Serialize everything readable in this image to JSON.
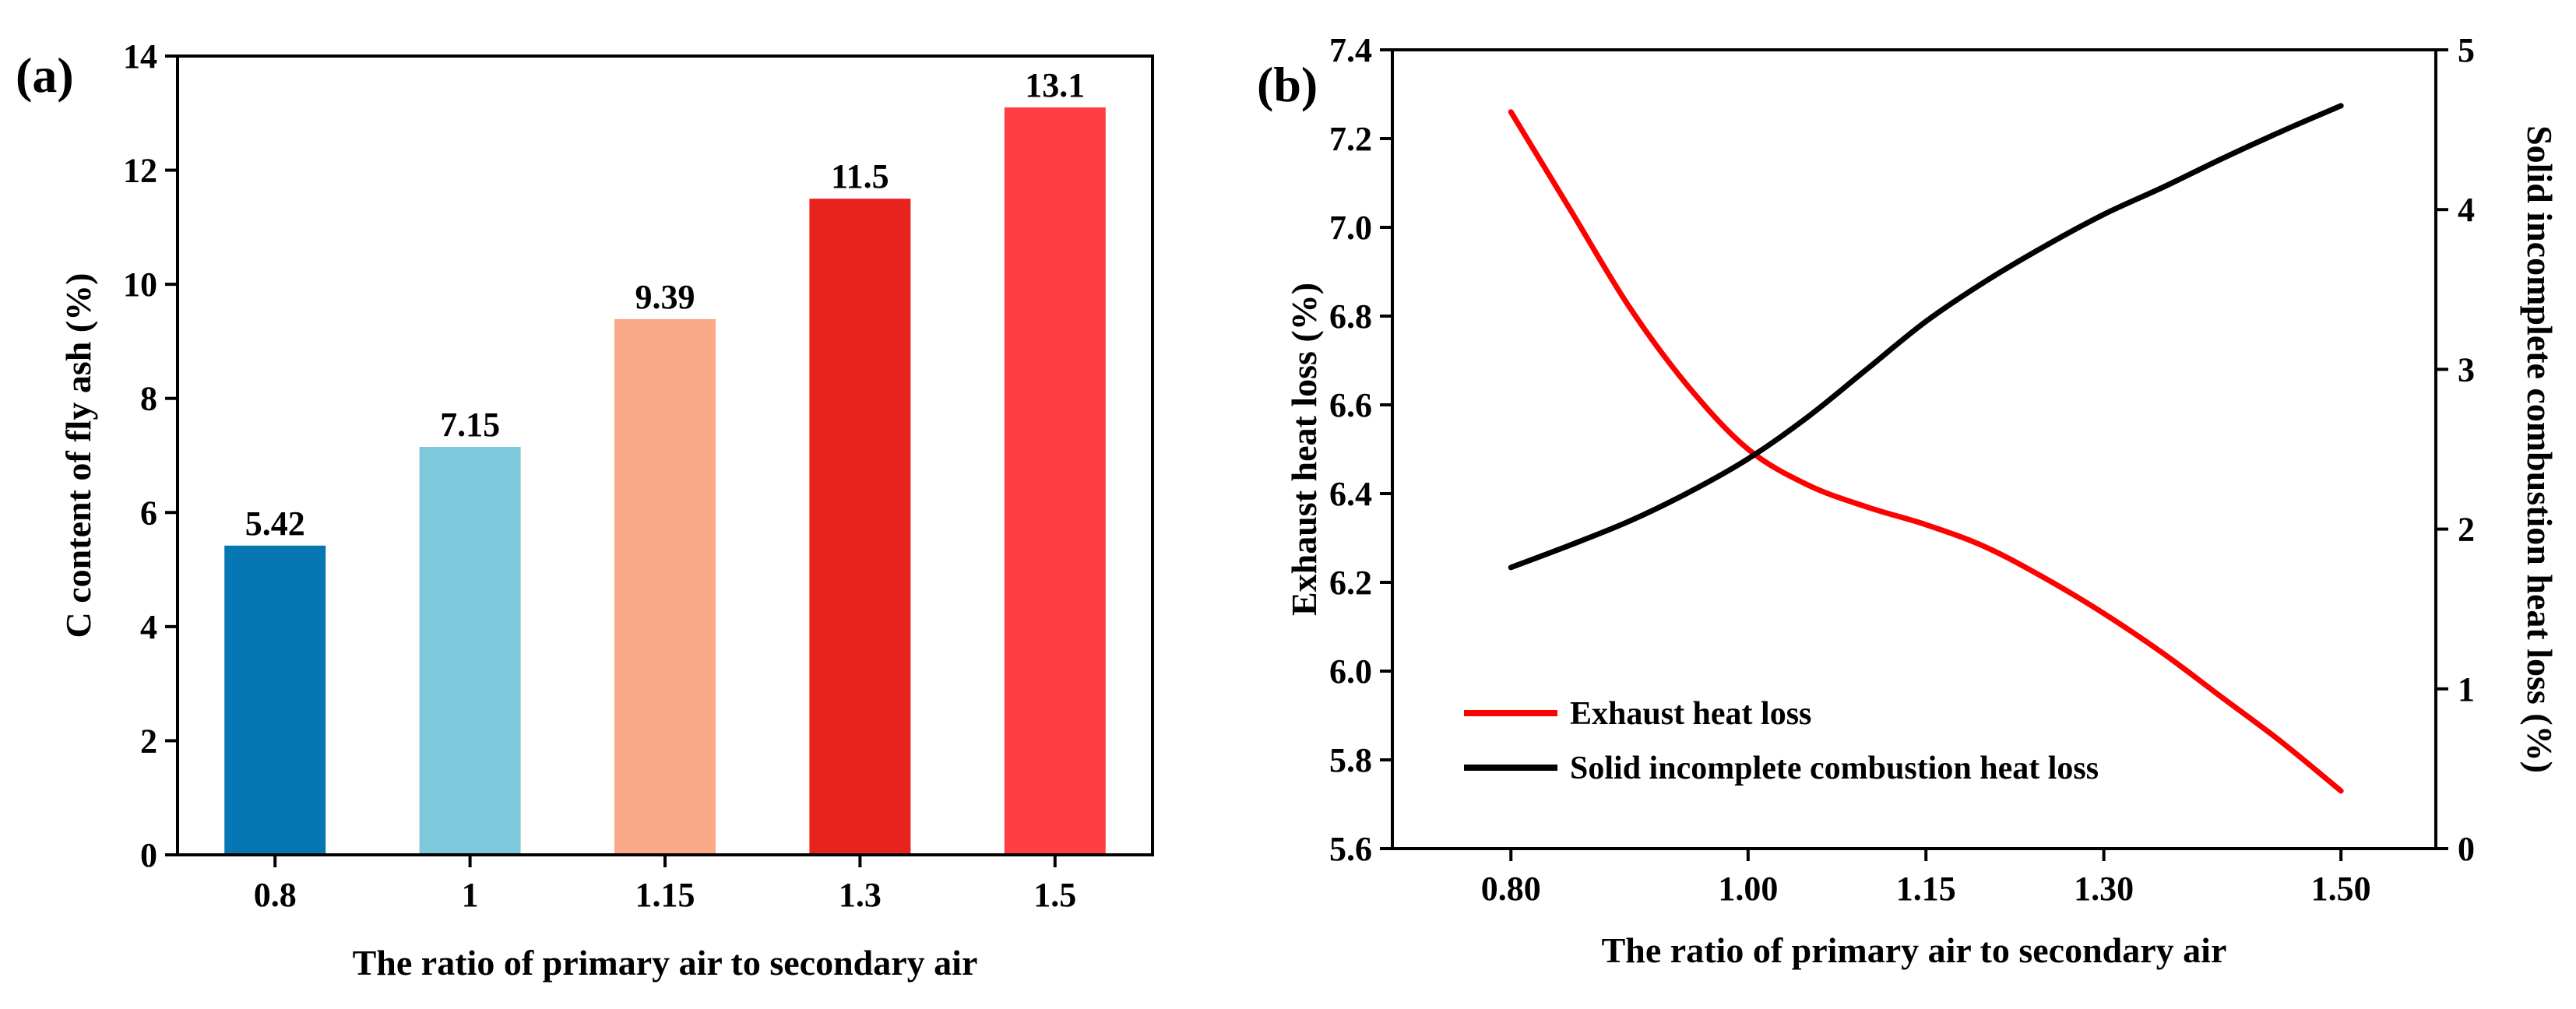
{
  "chart_data": [
    {
      "panel": "(a)",
      "type": "bar",
      "xlabel": "The ratio of primary air to secondary air",
      "ylabel": "C content of fly ash (%)",
      "ylim": [
        0,
        14
      ],
      "yticks": [
        "0",
        "2",
        "4",
        "6",
        "8",
        "10",
        "12",
        "14"
      ],
      "categories": [
        "0.8",
        "1",
        "1.15",
        "1.3",
        "1.5"
      ],
      "values": [
        5.42,
        7.15,
        9.39,
        11.5,
        13.1
      ],
      "data_labels": [
        "5.42",
        "7.15",
        "9.39",
        "11.5",
        "13.1"
      ],
      "colors": [
        "#0677b3",
        "#7ec8dc",
        "#fca98a",
        "#e8221e",
        "#fd3f44"
      ]
    },
    {
      "panel": "(b)",
      "type": "line",
      "xlabel": "The ratio of primary air to secondary air",
      "ylabel_left": "Exhaust heat loss (%)",
      "ylabel_right": "Solid incomplete combustion heat loss (%)",
      "xlim": [
        0.7,
        1.58
      ],
      "ylim_left": [
        5.6,
        7.4
      ],
      "ylim_right": [
        0,
        5
      ],
      "xticks": [
        "0.80",
        "1.00",
        "1.15",
        "1.30",
        "1.50"
      ],
      "xtick_values": [
        0.8,
        1.0,
        1.15,
        1.3,
        1.5
      ],
      "yticks_left": [
        "5.6",
        "5.8",
        "6.0",
        "6.2",
        "6.4",
        "6.6",
        "6.8",
        "7.0",
        "7.2",
        "7.4"
      ],
      "yticks_right": [
        "0",
        "1",
        "2",
        "3",
        "4",
        "5"
      ],
      "series": [
        {
          "name": "Exhaust heat loss",
          "axis": "left",
          "color": "#ff0000",
          "x": [
            0.8,
            0.85,
            0.9,
            0.95,
            1.0,
            1.05,
            1.1,
            1.15,
            1.2,
            1.25,
            1.3,
            1.35,
            1.4,
            1.45,
            1.5
          ],
          "y": [
            7.26,
            7.04,
            6.82,
            6.64,
            6.5,
            6.42,
            6.37,
            6.33,
            6.28,
            6.21,
            6.13,
            6.04,
            5.94,
            5.84,
            5.73
          ]
        },
        {
          "name": "Solid incomplete combustion heat loss",
          "axis": "right",
          "color": "#000000",
          "x": [
            0.8,
            0.85,
            0.9,
            0.95,
            1.0,
            1.05,
            1.1,
            1.15,
            1.2,
            1.25,
            1.3,
            1.35,
            1.4,
            1.45,
            1.5
          ],
          "y": [
            1.76,
            1.9,
            2.05,
            2.23,
            2.44,
            2.7,
            3.0,
            3.3,
            3.55,
            3.77,
            3.97,
            4.14,
            4.32,
            4.49,
            4.65
          ]
        }
      ],
      "legend_position": "bottom-left"
    }
  ]
}
